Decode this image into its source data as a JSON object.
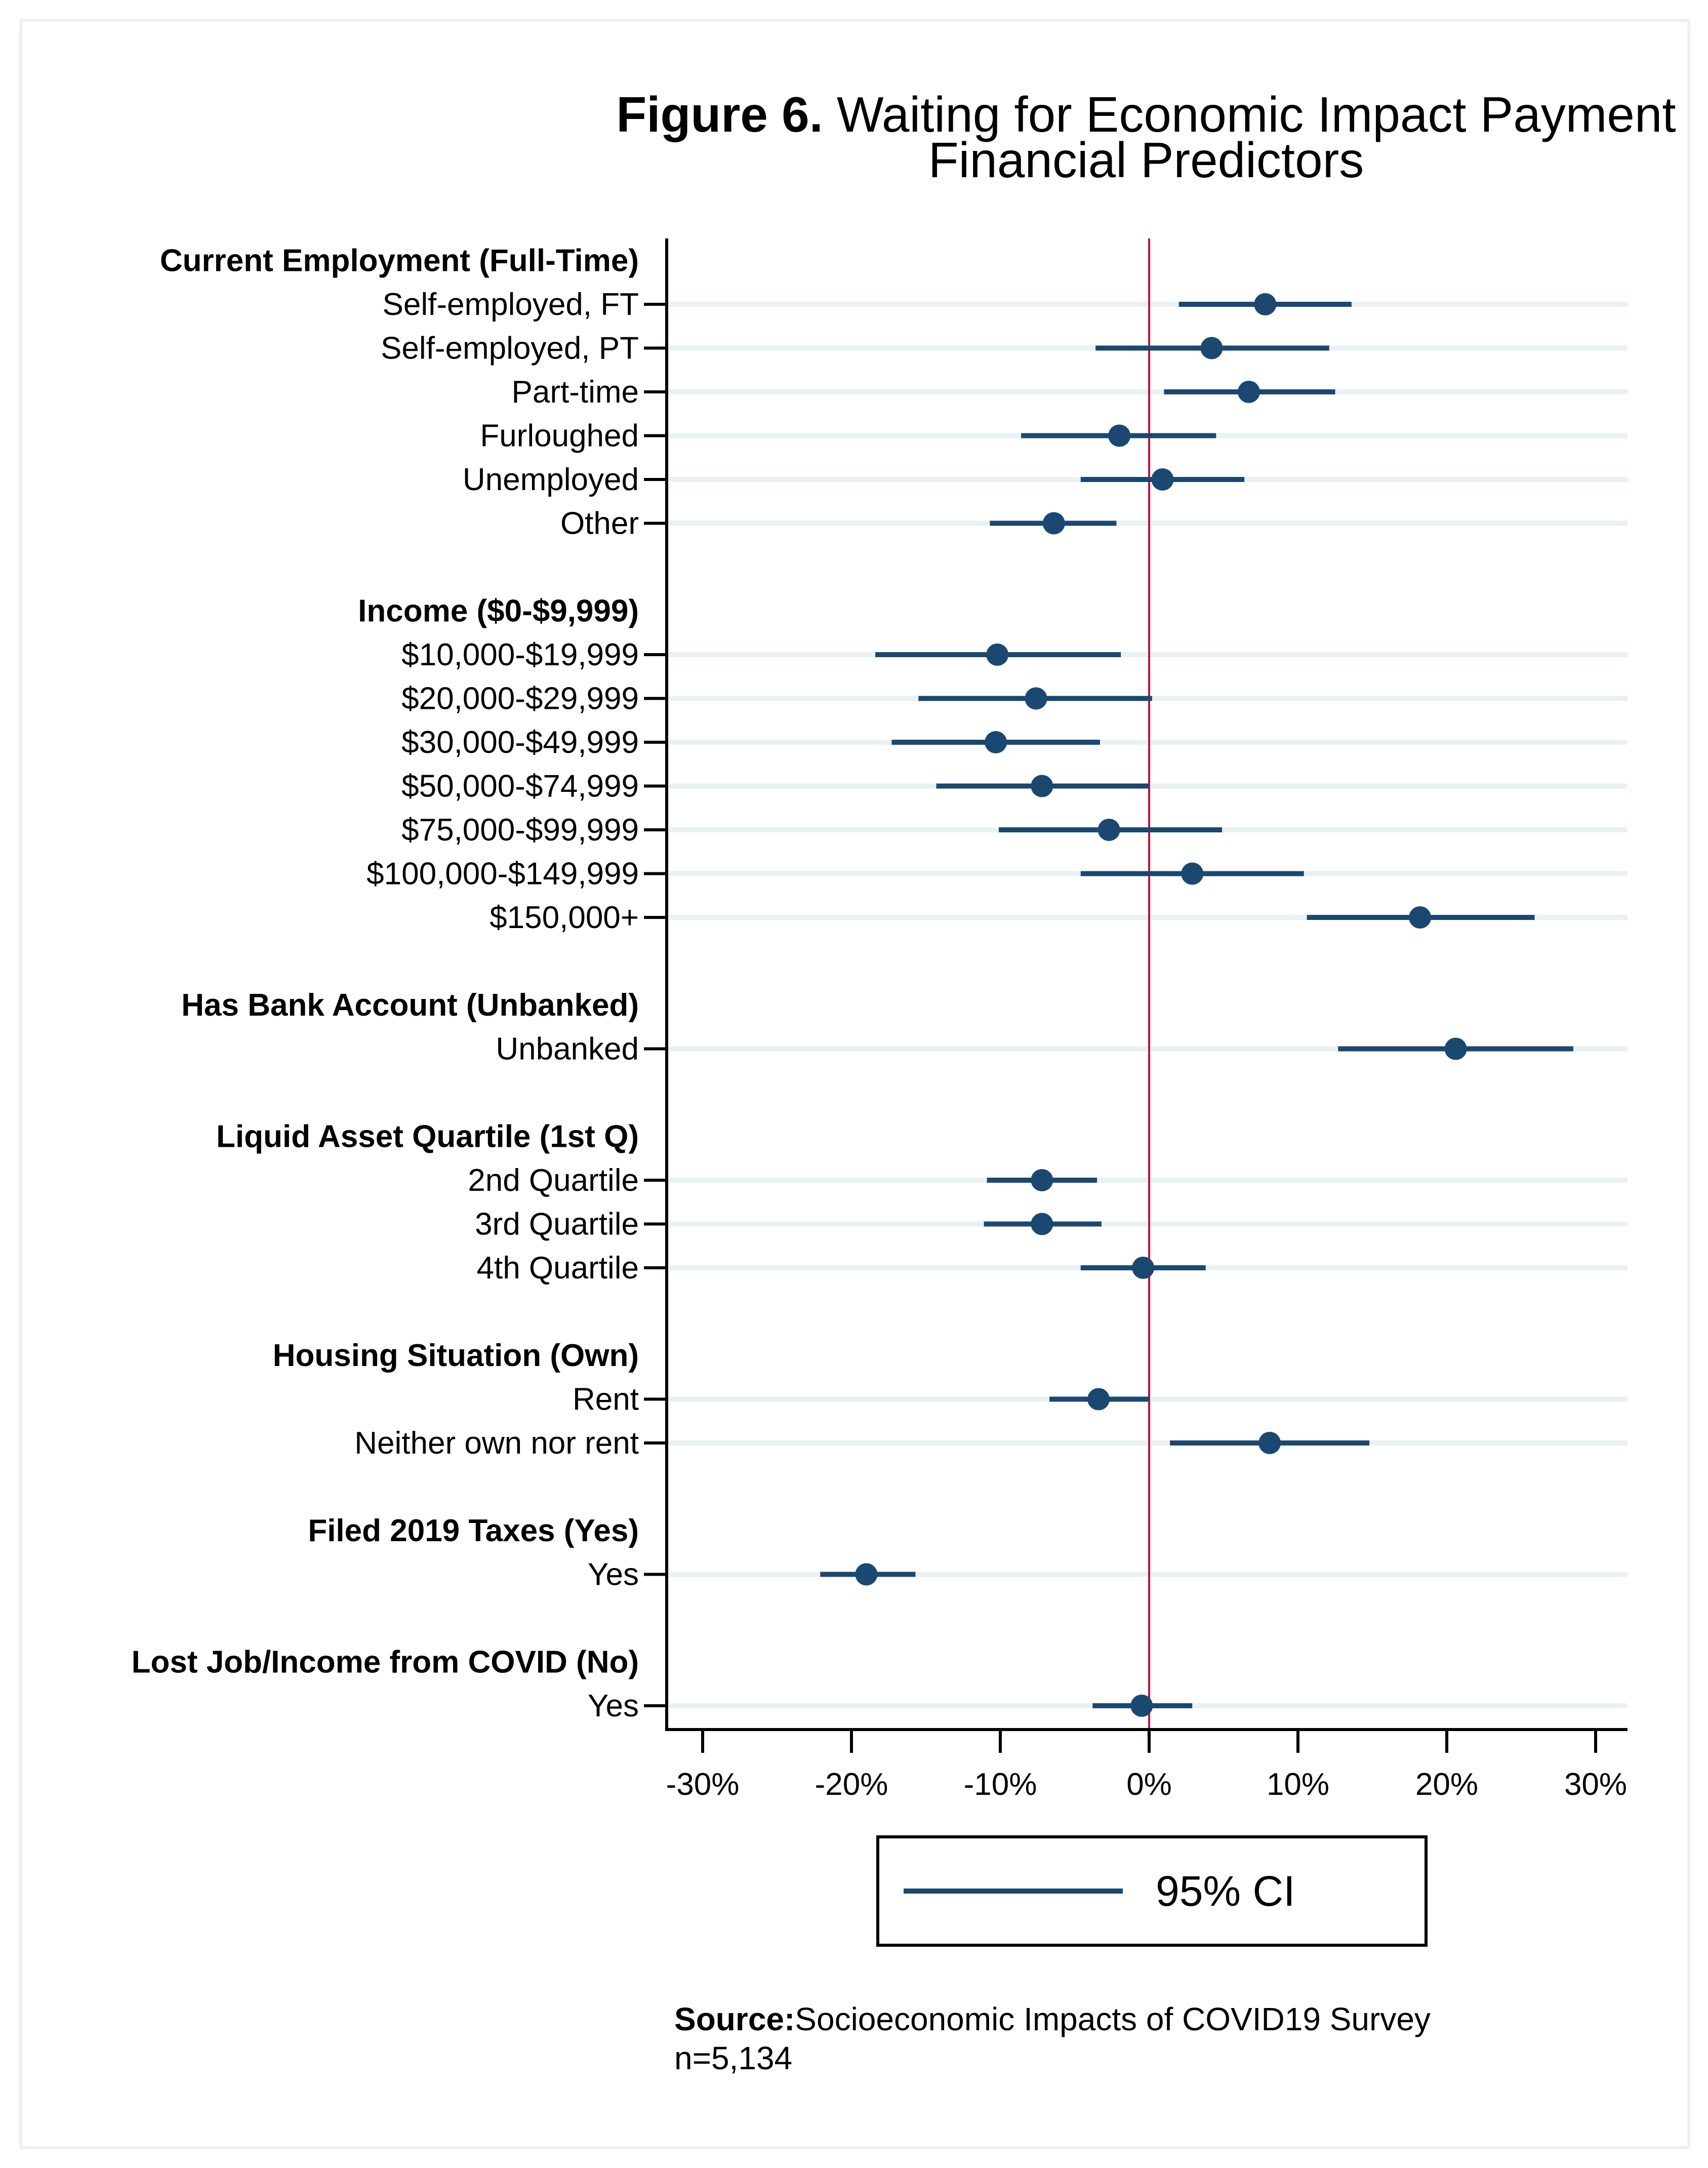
{
  "chart_data": {
    "type": "scatter",
    "subtype": "coefficient-plot-with-ci",
    "title_bold": "Figure 6.",
    "title_rest": " Waiting for Economic Impact Payment",
    "subtitle": "Financial Predictors",
    "xlabel": "",
    "ylabel": "",
    "xlim": [
      -32,
      32
    ],
    "x_ticks": [
      -30,
      -20,
      -10,
      0,
      10,
      20,
      30
    ],
    "x_tick_labels": [
      "-30%",
      "-20%",
      "-10%",
      "0%",
      "10%",
      "20%",
      "30%"
    ],
    "reference_line": 0,
    "grid": "horizontal bands per row",
    "legend": {
      "position": "bottom-center",
      "entries": [
        "95% CI"
      ]
    },
    "colors": {
      "point": "#1a4870",
      "ci": "#1a4870",
      "reference": "#c2113f",
      "band": "#eaf1f3"
    },
    "groups": [
      {
        "header": "Current Employment (Full-Time)",
        "items": [
          {
            "label": "Self-employed, FT",
            "estimate": 7.8,
            "ci_low": 2.0,
            "ci_high": 13.6
          },
          {
            "label": "Self-employed, PT",
            "estimate": 4.2,
            "ci_low": -3.6,
            "ci_high": 12.1
          },
          {
            "label": "Part-time",
            "estimate": 6.7,
            "ci_low": 1.0,
            "ci_high": 12.5
          },
          {
            "label": "Furloughed",
            "estimate": -2.0,
            "ci_low": -8.6,
            "ci_high": 4.5
          },
          {
            "label": "Unemployed",
            "estimate": 0.9,
            "ci_low": -4.6,
            "ci_high": 6.4
          },
          {
            "label": "Other",
            "estimate": -6.4,
            "ci_low": -10.7,
            "ci_high": -2.2
          }
        ]
      },
      {
        "header": "Income ($0-$9,999)",
        "items": [
          {
            "label": "$10,000-$19,999",
            "estimate": -10.2,
            "ci_low": -18.4,
            "ci_high": -1.9
          },
          {
            "label": "$20,000-$29,999",
            "estimate": -7.6,
            "ci_low": -15.5,
            "ci_high": 0.2
          },
          {
            "label": "$30,000-$49,999",
            "estimate": -10.3,
            "ci_low": -17.3,
            "ci_high": -3.3
          },
          {
            "label": "$50,000-$74,999",
            "estimate": -7.2,
            "ci_low": -14.3,
            "ci_high": 0.0
          },
          {
            "label": "$75,000-$99,999",
            "estimate": -2.7,
            "ci_low": -10.1,
            "ci_high": 4.9
          },
          {
            "label": "$100,000-$149,999",
            "estimate": 2.9,
            "ci_low": -4.6,
            "ci_high": 10.4
          },
          {
            "label": "$150,000+",
            "estimate": 18.2,
            "ci_low": 10.6,
            "ci_high": 25.9
          }
        ]
      },
      {
        "header": "Has Bank Account (Unbanked)",
        "items": [
          {
            "label": "Unbanked",
            "estimate": 20.6,
            "ci_low": 12.7,
            "ci_high": 28.5
          }
        ]
      },
      {
        "header": "Liquid Asset Quartile (1st Q)",
        "items": [
          {
            "label": "2nd Quartile",
            "estimate": -7.2,
            "ci_low": -10.9,
            "ci_high": -3.5
          },
          {
            "label": "3rd Quartile",
            "estimate": -7.2,
            "ci_low": -11.1,
            "ci_high": -3.2
          },
          {
            "label": "4th Quartile",
            "estimate": -0.4,
            "ci_low": -4.6,
            "ci_high": 3.8
          }
        ]
      },
      {
        "header": "Housing Situation (Own)",
        "items": [
          {
            "label": "Rent",
            "estimate": -3.4,
            "ci_low": -6.7,
            "ci_high": 0.0
          },
          {
            "label": "Neither own nor rent",
            "estimate": 8.1,
            "ci_low": 1.4,
            "ci_high": 14.8
          }
        ]
      },
      {
        "header": "Filed 2019 Taxes (Yes)",
        "items": [
          {
            "label": "Yes",
            "estimate": -19.0,
            "ci_low": -22.1,
            "ci_high": -15.7
          }
        ]
      },
      {
        "header": "Lost Job/Income from COVID (No)",
        "items": [
          {
            "label": "Yes",
            "estimate": -0.5,
            "ci_low": -3.8,
            "ci_high": 2.9
          }
        ]
      }
    ]
  },
  "source": {
    "label": "Source:",
    "text": "Socioeconomic Impacts of COVID19 Survey",
    "n": "n=5,134"
  }
}
